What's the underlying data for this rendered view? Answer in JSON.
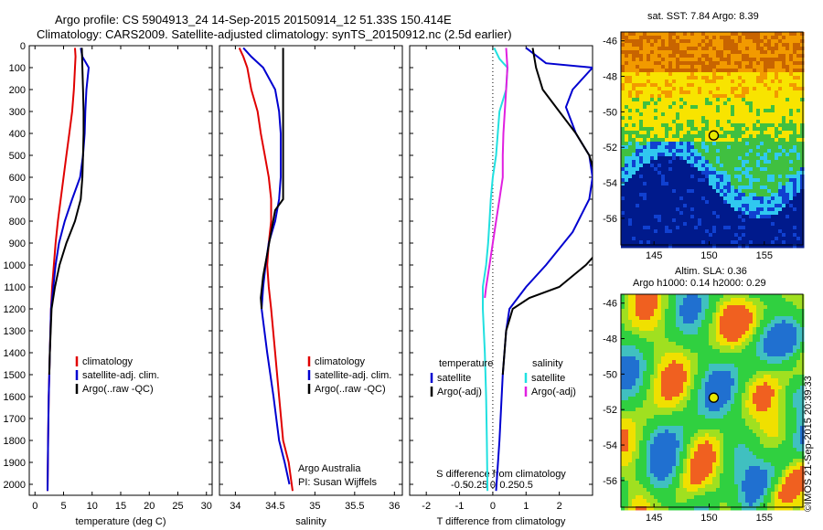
{
  "header": {
    "line1": "Argo profile: CS 5904913_24 14-Sep-2015 20150914_12 51.33S 150.414E",
    "line2": "Climatology: CARS2009. Satellite-adjusted climatology: synTS_20150912.nc (2.5d earlier)"
  },
  "sst_map": {
    "title": "sat. SST: 7.84  Argo: 8.39",
    "x_ticks": [
      "145",
      "150",
      "155"
    ],
    "y_ticks": [
      "-46",
      "-48",
      "-50",
      "-52",
      "-54",
      "-56"
    ],
    "float_lon": 150.414,
    "float_lat": -51.33,
    "colors": {
      "warm": "#f29a00",
      "mid": "#f8e400",
      "green": "#40c040",
      "cyan": "#30c8f0",
      "deep": "#001a8c"
    }
  },
  "sla_map": {
    "title1": "Altim. SLA: 0.36",
    "title2": "Argo h1000: 0.14  h2000: 0.29",
    "x_ticks": [
      "145",
      "150",
      "155"
    ],
    "y_ticks": [
      "-46",
      "-48",
      "-50",
      "-52",
      "-54",
      "-56"
    ],
    "float_lon": 150.414,
    "float_lat": -51.33
  },
  "footer": {
    "stamp": "©IMOS 21-Sep-2015 20:39:33"
  },
  "chart_data": [
    {
      "type": "line",
      "xlabel": "temperature (deg C)",
      "xlim": [
        -1,
        31
      ],
      "ylim": [
        0,
        2050
      ],
      "y_inverted": true,
      "x_ticks": [
        "0",
        "5",
        "10",
        "15",
        "20",
        "25",
        "30"
      ],
      "y_ticks": [
        "0",
        "100",
        "200",
        "300",
        "400",
        "500",
        "600",
        "700",
        "800",
        "900",
        "1000",
        "1100",
        "1200",
        "1300",
        "1400",
        "1500",
        "1600",
        "1700",
        "1800",
        "1900",
        "2000"
      ],
      "legend": [
        "climatology",
        "satellite-adj. clim.",
        "Argo(..raw -QC)"
      ],
      "legend_position": "lower-right",
      "series": [
        {
          "name": "climatology",
          "color": "#e00000",
          "points": [
            [
              7.0,
              10
            ],
            [
              7.1,
              50
            ],
            [
              7.0,
              100
            ],
            [
              6.8,
              200
            ],
            [
              6.5,
              300
            ],
            [
              6.0,
              400
            ],
            [
              5.5,
              500
            ],
            [
              5.0,
              600
            ],
            [
              4.5,
              700
            ],
            [
              4.0,
              800
            ],
            [
              3.6,
              900
            ],
            [
              3.3,
              1000
            ],
            [
              3.0,
              1100
            ],
            [
              2.8,
              1200
            ],
            [
              2.6,
              1400
            ],
            [
              2.4,
              1600
            ],
            [
              2.3,
              1800
            ],
            [
              2.2,
              2030
            ]
          ]
        },
        {
          "name": "satellite-adj. clim.",
          "color": "#0000d0",
          "points": [
            [
              8.0,
              10
            ],
            [
              8.3,
              50
            ],
            [
              9.4,
              100
            ],
            [
              9.0,
              200
            ],
            [
              8.8,
              300
            ],
            [
              8.7,
              400
            ],
            [
              8.4,
              500
            ],
            [
              7.9,
              600
            ],
            [
              6.5,
              700
            ],
            [
              5.2,
              800
            ],
            [
              4.2,
              900
            ],
            [
              3.6,
              1000
            ],
            [
              3.2,
              1100
            ],
            [
              2.8,
              1200
            ],
            [
              2.6,
              1400
            ],
            [
              2.4,
              1600
            ],
            [
              2.3,
              1800
            ],
            [
              2.2,
              2030
            ]
          ]
        },
        {
          "name": "Argo(..raw -QC)",
          "color": "#000000",
          "points": [
            [
              8.2,
              10
            ],
            [
              8.3,
              100
            ],
            [
              8.4,
              200
            ],
            [
              8.5,
              300
            ],
            [
              8.5,
              400
            ],
            [
              8.4,
              500
            ],
            [
              8.3,
              600
            ],
            [
              8.0,
              700
            ],
            [
              7.0,
              800
            ],
            [
              5.5,
              900
            ],
            [
              4.3,
              1000
            ],
            [
              3.5,
              1100
            ],
            [
              2.9,
              1200
            ],
            [
              2.6,
              1400
            ],
            [
              2.5,
              1500
            ]
          ]
        }
      ]
    },
    {
      "type": "line",
      "xlabel": "salinity",
      "xlim": [
        33.8,
        36.1
      ],
      "ylim": [
        0,
        2050
      ],
      "y_inverted": true,
      "x_ticks": [
        "34",
        "34.5",
        "35",
        "35.5",
        "36"
      ],
      "legend": [
        "climatology",
        "satellite-adj. clim.",
        "Argo(..raw -QC)"
      ],
      "legend_position": "lower-right",
      "annotation": [
        "Argo Australia",
        "PI: Susan Wijffels"
      ],
      "series": [
        {
          "name": "climatology",
          "color": "#e00000",
          "points": [
            [
              34.05,
              10
            ],
            [
              34.1,
              50
            ],
            [
              34.15,
              100
            ],
            [
              34.2,
              200
            ],
            [
              34.28,
              300
            ],
            [
              34.32,
              400
            ],
            [
              34.37,
              500
            ],
            [
              34.42,
              600
            ],
            [
              34.45,
              700
            ],
            [
              34.45,
              800
            ],
            [
              34.42,
              900
            ],
            [
              34.4,
              1000
            ],
            [
              34.42,
              1100
            ],
            [
              34.45,
              1200
            ],
            [
              34.5,
              1400
            ],
            [
              34.55,
              1600
            ],
            [
              34.6,
              1800
            ],
            [
              34.67,
              1900
            ],
            [
              34.72,
              2030
            ]
          ]
        },
        {
          "name": "satellite-adj. clim.",
          "color": "#0000d0",
          "points": [
            [
              34.1,
              10
            ],
            [
              34.2,
              50
            ],
            [
              34.35,
              100
            ],
            [
              34.5,
              200
            ],
            [
              34.55,
              300
            ],
            [
              34.57,
              400
            ],
            [
              34.57,
              500
            ],
            [
              34.57,
              600
            ],
            [
              34.55,
              700
            ],
            [
              34.5,
              800
            ],
            [
              34.42,
              900
            ],
            [
              34.38,
              1000
            ],
            [
              34.35,
              1100
            ],
            [
              34.33,
              1200
            ],
            [
              34.4,
              1400
            ],
            [
              34.48,
              1600
            ],
            [
              34.55,
              1800
            ],
            [
              34.62,
              1900
            ],
            [
              34.68,
              2000
            ]
          ]
        },
        {
          "name": "Argo(..raw -QC)",
          "color": "#000000",
          "points": [
            [
              34.6,
              10
            ],
            [
              34.6,
              100
            ],
            [
              34.6,
              200
            ],
            [
              34.6,
              400
            ],
            [
              34.6,
              600
            ],
            [
              34.6,
              700
            ],
            [
              34.5,
              750
            ],
            [
              34.45,
              850
            ],
            [
              34.4,
              950
            ],
            [
              34.35,
              1050
            ],
            [
              34.32,
              1150
            ],
            [
              34.33,
              1200
            ]
          ]
        }
      ]
    },
    {
      "type": "line",
      "xlabel": "T difference from climatology",
      "xlabel2": "S difference from climatology",
      "xlim": [
        -2.5,
        3
      ],
      "ylim": [
        0,
        2050
      ],
      "y_inverted": true,
      "x_ticks": [
        "-2",
        "-1",
        "0",
        "1",
        "2"
      ],
      "x2_ticks": [
        "-0.5",
        "-0.25",
        "0",
        "0.25",
        "0.5"
      ],
      "legend_temp_header": "temperature",
      "legend_sal_header": "salinity",
      "legend": [
        "satellite",
        "Argo(-adj)",
        "satellite",
        "Argo(-adj)"
      ],
      "legend_position": "lower-right",
      "series": [
        {
          "name": "temperature satellite",
          "color": "#0000d0",
          "points": [
            [
              1.0,
              10
            ],
            [
              1.6,
              80
            ],
            [
              3.0,
              100
            ],
            [
              2.4,
              200
            ],
            [
              2.2,
              280
            ],
            [
              2.5,
              400
            ],
            [
              2.9,
              500
            ],
            [
              3.0,
              600
            ],
            [
              2.9,
              700
            ],
            [
              2.4,
              850
            ],
            [
              1.6,
              1000
            ],
            [
              1.0,
              1100
            ],
            [
              0.5,
              1200
            ],
            [
              0.4,
              1300
            ],
            [
              0.3,
              1500
            ],
            [
              0.2,
              1800
            ],
            [
              0.1,
              2030
            ]
          ]
        },
        {
          "name": "temperature Argo(-adj)",
          "color": "#000000",
          "points": [
            [
              1.2,
              10
            ],
            [
              1.3,
              100
            ],
            [
              1.5,
              200
            ],
            [
              2.0,
              300
            ],
            [
              2.5,
              400
            ],
            [
              2.9,
              500
            ],
            [
              3.1,
              600
            ],
            [
              3.4,
              700
            ],
            [
              3.5,
              800
            ],
            [
              3.4,
              900
            ],
            [
              2.8,
              1000
            ],
            [
              2.0,
              1100
            ],
            [
              1.1,
              1150
            ],
            [
              0.6,
              1200
            ],
            [
              0.4,
              1300
            ],
            [
              0.3,
              1500
            ]
          ]
        },
        {
          "name": "salinity satellite",
          "color": "#20e0e0",
          "points": [
            [
              0.02,
              10
            ],
            [
              0.1,
              60
            ],
            [
              0.22,
              100
            ],
            [
              0.2,
              200
            ],
            [
              0.1,
              300
            ],
            [
              0.05,
              500
            ],
            [
              0.0,
              600
            ],
            [
              -0.03,
              700
            ],
            [
              -0.05,
              800
            ],
            [
              -0.07,
              900
            ],
            [
              -0.1,
              1000
            ],
            [
              -0.15,
              1100
            ],
            [
              -0.15,
              1200
            ],
            [
              -0.12,
              1400
            ],
            [
              -0.1,
              1600
            ],
            [
              -0.09,
              1800
            ],
            [
              -0.08,
              2030
            ]
          ]
        },
        {
          "name": "salinity Argo(-adj)",
          "color": "#e020e0",
          "points": [
            [
              0.2,
              10
            ],
            [
              0.22,
              100
            ],
            [
              0.2,
              200
            ],
            [
              0.18,
              300
            ],
            [
              0.16,
              400
            ],
            [
              0.15,
              500
            ],
            [
              0.15,
              600
            ],
            [
              0.1,
              700
            ],
            [
              0.05,
              800
            ],
            [
              0.0,
              900
            ],
            [
              -0.05,
              1000
            ],
            [
              -0.1,
              1100
            ],
            [
              -0.12,
              1150
            ]
          ]
        }
      ]
    }
  ]
}
